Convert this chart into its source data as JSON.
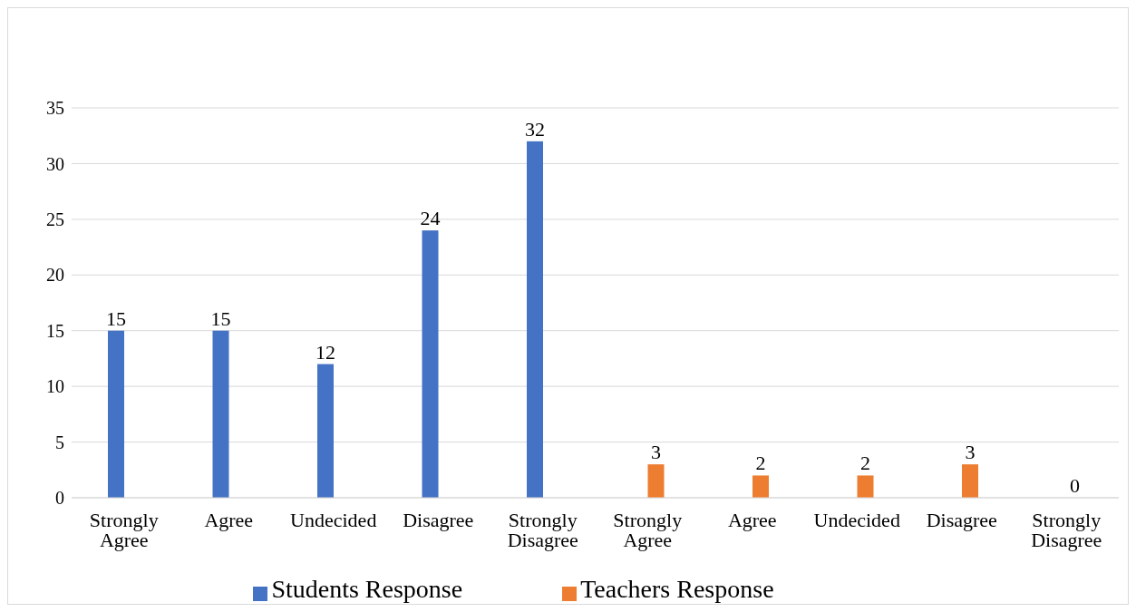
{
  "chart_data": {
    "type": "bar",
    "categories": [
      "Strongly Agree",
      "Agree",
      "Undecided",
      "Disagree",
      "Strongly Disagree",
      "Strongly Agree",
      "Agree",
      "Undecided",
      "Disagree",
      "Strongly Disagree"
    ],
    "series": [
      {
        "name": "Students Response",
        "color": "#4472c4",
        "values": [
          15,
          15,
          12,
          24,
          32,
          null,
          null,
          null,
          null,
          null
        ]
      },
      {
        "name": "Teachers Response",
        "color": "#ed7d31",
        "values": [
          null,
          null,
          null,
          null,
          null,
          3,
          2,
          2,
          3,
          0
        ]
      }
    ],
    "ylim": [
      0,
      35
    ],
    "yticks": [
      0,
      5,
      10,
      15,
      20,
      25,
      30,
      35
    ],
    "grid": "y",
    "legend": "bottom",
    "data_labels": true
  }
}
